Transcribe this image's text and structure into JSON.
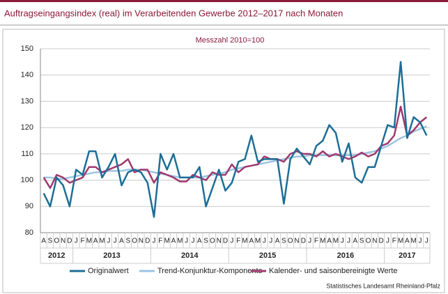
{
  "chart_data": {
    "type": "line",
    "title": "Auftragseingangsindex (real) im Verarbeitenden Gewerbe 2012–2017 nach Monaten",
    "subtitle": "Messzahl 2010=100",
    "source": "Statistisches Landesamt Rheinland-Pfalz",
    "categories": [
      "A",
      "S",
      "O",
      "N",
      "D",
      "J",
      "F",
      "M",
      "A",
      "M",
      "J",
      "J",
      "A",
      "S",
      "O",
      "N",
      "D",
      "J",
      "F",
      "M",
      "A",
      "M",
      "J",
      "J",
      "A",
      "S",
      "O",
      "N",
      "D",
      "J",
      "F",
      "M",
      "A",
      "M",
      "J",
      "J",
      "A",
      "S",
      "O",
      "N",
      "D",
      "J",
      "F",
      "M",
      "A",
      "M",
      "J",
      "J",
      "A",
      "S",
      "O",
      "N",
      "D",
      "J",
      "F",
      "M",
      "A",
      "M",
      "J",
      "J"
    ],
    "years": [
      "2012",
      "2013",
      "2014",
      "2015",
      "2016",
      "2017"
    ],
    "ylim": [
      80,
      150
    ],
    "yticks": [
      80,
      90,
      100,
      110,
      120,
      130,
      140,
      150
    ],
    "grid": true,
    "series": [
      {
        "name": "Originalwert",
        "color": "#1c6e96",
        "values": [
          95,
          90,
          101,
          98,
          90,
          104,
          102,
          111,
          111,
          101,
          105,
          110,
          98,
          103,
          104,
          103,
          99,
          86,
          110,
          104,
          110,
          101,
          101,
          101,
          105,
          90,
          97,
          104,
          96,
          99,
          107,
          108,
          117,
          107,
          108,
          108,
          108,
          91,
          108,
          112,
          109,
          106,
          113,
          115,
          121,
          118,
          107,
          114,
          101,
          99,
          105,
          105,
          113,
          121,
          120,
          145,
          116,
          124,
          122,
          117
        ]
      },
      {
        "name": "Trend-Konjunktur-Komponente",
        "color": "#9cc4e2",
        "values": [
          101,
          101,
          100.5,
          100.5,
          101,
          101.5,
          102,
          102.5,
          103,
          103,
          103.5,
          103.5,
          103.5,
          104,
          104,
          104,
          103.5,
          103,
          102.5,
          102,
          101.5,
          101,
          101,
          101,
          101,
          101.5,
          102,
          102.5,
          103,
          104,
          104.5,
          105,
          105.5,
          106,
          106.5,
          107,
          107.5,
          108,
          108.5,
          109,
          109,
          109.5,
          109.5,
          109.5,
          109.5,
          109.5,
          109.5,
          109.5,
          109.5,
          110,
          110.5,
          111,
          112,
          113,
          114.5,
          116,
          117,
          118.5,
          119.5,
          120.5
        ]
      },
      {
        "name": "Kalender- und saisonbereinigte Werte",
        "color": "#a0396e",
        "values": [
          101,
          97,
          102,
          101,
          99,
          100,
          101,
          105,
          105,
          103,
          104,
          105,
          106,
          108,
          103,
          104,
          104,
          99,
          103,
          102,
          101,
          99.5,
          99.5,
          102,
          101,
          100,
          103,
          102,
          102,
          106,
          103,
          105,
          105.5,
          106,
          109,
          108,
          108,
          107,
          110,
          111,
          110,
          110,
          109,
          111,
          109,
          110,
          109,
          108,
          109,
          110.5,
          109,
          110,
          113,
          114,
          117,
          128,
          117,
          119,
          122,
          124
        ]
      }
    ]
  }
}
